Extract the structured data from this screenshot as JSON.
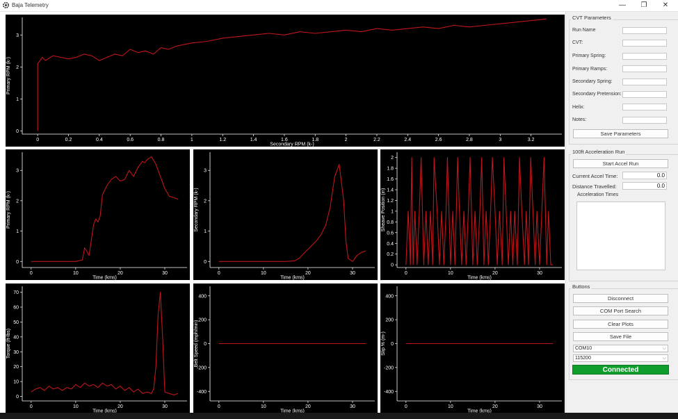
{
  "window": {
    "title": "Baja Telemetry",
    "minimize": "—",
    "restore": "❐",
    "close": "✕"
  },
  "colors": {
    "trace": "#c0161b",
    "axis": "#ffffff",
    "connected": "#0f9d2c"
  },
  "cvt": {
    "title": "CVT Parameters",
    "fields": [
      {
        "label": "Run Name",
        "value": ""
      },
      {
        "label": "CVT:",
        "value": ""
      },
      {
        "label": "Primary Spring:",
        "value": ""
      },
      {
        "label": "Primary Ramps:",
        "value": ""
      },
      {
        "label": "Secondary Spring:",
        "value": ""
      },
      {
        "label": "Secondary Pretension:",
        "value": ""
      },
      {
        "label": "Helix:",
        "value": ""
      },
      {
        "label": "Notes:",
        "value": ""
      }
    ],
    "save_label": "Save Parameters"
  },
  "accel": {
    "title": "100ft Acceleration Run",
    "start_label": "Start Accel Run",
    "current_label": "Current Accel Time:",
    "current_value": "0.0",
    "distance_label": "Distance Travelled:",
    "distance_value": "0.0",
    "times_title": "Acceleration Times"
  },
  "buttons": {
    "title": "Buttons",
    "disconnect": "Disconnect",
    "com_search": "COM Port Search",
    "clear": "Clear Plots",
    "save_file": "Save File",
    "port": "COM10",
    "baud": "115200",
    "status": "Connected"
  },
  "chart_data": [
    {
      "type": "line",
      "xlabel": "Secondary RPM (k-)",
      "ylabel": "Primary RPM (k-)",
      "xticks": [
        "0",
        "0.2",
        "0.4",
        "0.6",
        "0.8",
        "1",
        "1.2",
        "1.4",
        "1.6",
        "1.8",
        "2",
        "2.2",
        "2.4",
        "2.6",
        "2.8",
        "3",
        "3.2"
      ],
      "yticks": [
        "0",
        "1",
        "2",
        "3"
      ],
      "xlim": [
        -0.1,
        3.4
      ],
      "ylim": [
        -0.1,
        3.55
      ],
      "series": [
        {
          "x": [
            0,
            0,
            0,
            0.03,
            0.05,
            0.1,
            0.15,
            0.2,
            0.25,
            0.3,
            0.35,
            0.4,
            0.45,
            0.5,
            0.55,
            0.6,
            0.65,
            0.7,
            0.75,
            0.8,
            0.85,
            0.9,
            0.95,
            1.0,
            1.1,
            1.2,
            1.3,
            1.4,
            1.5,
            1.6,
            1.7,
            1.8,
            1.9,
            2.0,
            2.1,
            2.2,
            2.3,
            2.4,
            2.5,
            2.6,
            2.7,
            2.8,
            2.9,
            3.0,
            3.1,
            3.2,
            3.3
          ],
          "y": [
            0,
            1.2,
            2.1,
            2.3,
            2.2,
            2.35,
            2.3,
            2.25,
            2.3,
            2.4,
            2.35,
            2.2,
            2.3,
            2.4,
            2.35,
            2.55,
            2.45,
            2.5,
            2.4,
            2.6,
            2.55,
            2.65,
            2.7,
            2.75,
            2.8,
            2.9,
            2.95,
            3.0,
            3.05,
            3.0,
            3.1,
            3.05,
            3.1,
            3.15,
            3.1,
            3.2,
            3.15,
            3.2,
            3.25,
            3.2,
            3.3,
            3.25,
            3.3,
            3.35,
            3.4,
            3.45,
            3.5
          ]
        }
      ]
    },
    {
      "type": "line",
      "xlabel": "Time (kms)",
      "ylabel": "Primary RPM (k-)",
      "xticks": [
        "0",
        "10",
        "20",
        "30"
      ],
      "yticks": [
        "0",
        "1",
        "2",
        "3"
      ],
      "xlim": [
        -2,
        35
      ],
      "ylim": [
        -0.2,
        3.6
      ],
      "series": [
        {
          "x": [
            0,
            5,
            10,
            11.5,
            12,
            13,
            14,
            14.5,
            15,
            15.5,
            16,
            17,
            18,
            19,
            20,
            21,
            22,
            23,
            24,
            25,
            25.5,
            26,
            27,
            28,
            29,
            30,
            31,
            32,
            33
          ],
          "y": [
            0,
            0,
            0,
            0.05,
            0.45,
            0.2,
            1.2,
            1.4,
            1.3,
            1.5,
            2.2,
            2.5,
            2.7,
            2.8,
            2.65,
            2.7,
            3.0,
            2.8,
            3.1,
            3.3,
            3.25,
            3.35,
            3.45,
            3.2,
            2.8,
            2.4,
            2.15,
            2.1,
            2.05
          ]
        }
      ]
    },
    {
      "type": "line",
      "xlabel": "Time (kms)",
      "ylabel": "Secondary RPM (k-)",
      "xticks": [
        "0",
        "10",
        "20",
        "30"
      ],
      "yticks": [
        "0",
        "1",
        "2",
        "3"
      ],
      "xlim": [
        -2,
        35
      ],
      "ylim": [
        -0.2,
        3.6
      ],
      "series": [
        {
          "x": [
            0,
            5,
            10,
            15,
            17,
            18,
            19,
            20,
            21,
            22,
            23,
            24,
            25,
            25.5,
            26,
            27,
            28,
            28.5,
            29,
            30,
            31,
            32,
            33
          ],
          "y": [
            0,
            0,
            0,
            0,
            0.02,
            0.1,
            0.25,
            0.4,
            0.55,
            0.7,
            0.9,
            1.2,
            1.8,
            2.3,
            2.8,
            3.2,
            2.0,
            0.7,
            0.1,
            0,
            0.2,
            0.3,
            0.35
          ]
        }
      ]
    },
    {
      "type": "line",
      "xlabel": "Time (kms)",
      "ylabel": "Sheave Position (in)",
      "xticks": [
        "0",
        "10",
        "20",
        "30"
      ],
      "yticks": [
        "0",
        "0.2",
        "0.4",
        "0.6",
        "0.8",
        "1",
        "1.2",
        "1.4",
        "1.6",
        "1.8",
        "2"
      ],
      "xlim": [
        -2,
        35
      ],
      "ylim": [
        -0.05,
        2.1
      ],
      "series": [
        {
          "x": [
            0,
            0.5,
            1,
            1.3,
            1.6,
            2,
            2.5,
            3,
            3.4,
            4,
            4.5,
            5,
            5.5,
            6,
            6.3,
            7,
            7.5,
            8,
            8.5,
            9,
            9.3,
            10,
            10.5,
            11,
            11.6,
            12,
            12.5,
            13,
            13.5,
            14,
            14.4,
            15,
            15.5,
            16,
            16.6,
            17,
            17.5,
            18,
            18.5,
            19,
            19.4,
            20,
            20.5,
            21,
            21.6,
            22,
            22.5,
            23,
            23.5,
            24,
            24.4,
            25,
            25.5,
            26,
            26.6,
            27,
            27.5,
            28,
            28.5,
            29,
            29.4,
            30,
            30.5,
            31,
            31.6,
            32,
            32.5,
            33
          ],
          "y": [
            0,
            1,
            0,
            2,
            0,
            1,
            0,
            1,
            2,
            0,
            1,
            0,
            1,
            0,
            2,
            1,
            0,
            1,
            0,
            1,
            2,
            0,
            1,
            0,
            2,
            1,
            0,
            1,
            0,
            1,
            2,
            0,
            1,
            0,
            1,
            2,
            0,
            1,
            0,
            1,
            2,
            1,
            0,
            1,
            0,
            2,
            1,
            0,
            1,
            0,
            1,
            0,
            2,
            1,
            0,
            1,
            0,
            2,
            1,
            0,
            1,
            0,
            1,
            2,
            0,
            1,
            0,
            0
          ]
        }
      ]
    },
    {
      "type": "line",
      "xlabel": "Time (kms)",
      "ylabel": "Torque (ft-lbs)",
      "xticks": [
        "0",
        "10",
        "20",
        "30"
      ],
      "yticks": [
        "0",
        "10",
        "20",
        "30",
        "40",
        "50",
        "60",
        "70"
      ],
      "xlim": [
        -2,
        35
      ],
      "ylim": [
        -3,
        74
      ],
      "series": [
        {
          "x": [
            0,
            1,
            2,
            3,
            4,
            5,
            6,
            7,
            8,
            9,
            10,
            11,
            12,
            13,
            14,
            15,
            16,
            17,
            18,
            19,
            20,
            21,
            22,
            23,
            24,
            25,
            26,
            27,
            27.5,
            28,
            28.5,
            29,
            29.5,
            30,
            31,
            32,
            33
          ],
          "y": [
            3,
            5,
            6,
            4,
            7,
            5,
            6,
            4,
            6,
            5,
            8,
            6,
            9,
            7,
            8,
            6,
            9,
            7,
            8,
            5,
            7,
            4,
            6,
            3,
            5,
            2,
            3,
            2,
            5,
            20,
            55,
            70,
            40,
            3,
            2,
            1,
            2
          ]
        }
      ]
    },
    {
      "type": "line",
      "xlabel": "Time (kms)",
      "ylabel": "Belt Speed (mph/min)",
      "xticks": [
        "0",
        "10",
        "20",
        "30"
      ],
      "yticks": [
        "-400",
        "-200",
        "0",
        "200",
        "400"
      ],
      "xlim": [
        -2,
        35
      ],
      "ylim": [
        -480,
        480
      ],
      "series": [
        {
          "x": [
            0,
            33
          ],
          "y": [
            0,
            0
          ]
        }
      ]
    },
    {
      "type": "line",
      "xlabel": "Time (kms)",
      "ylabel": "Slip % (m-)",
      "xticks": [
        "0",
        "10",
        "20",
        "30"
      ],
      "yticks": [
        "-400",
        "-200",
        "0",
        "200",
        "400"
      ],
      "xlim": [
        -2,
        35
      ],
      "ylim": [
        -480,
        480
      ],
      "series": [
        {
          "x": [
            0,
            33
          ],
          "y": [
            0,
            0
          ]
        }
      ]
    }
  ]
}
